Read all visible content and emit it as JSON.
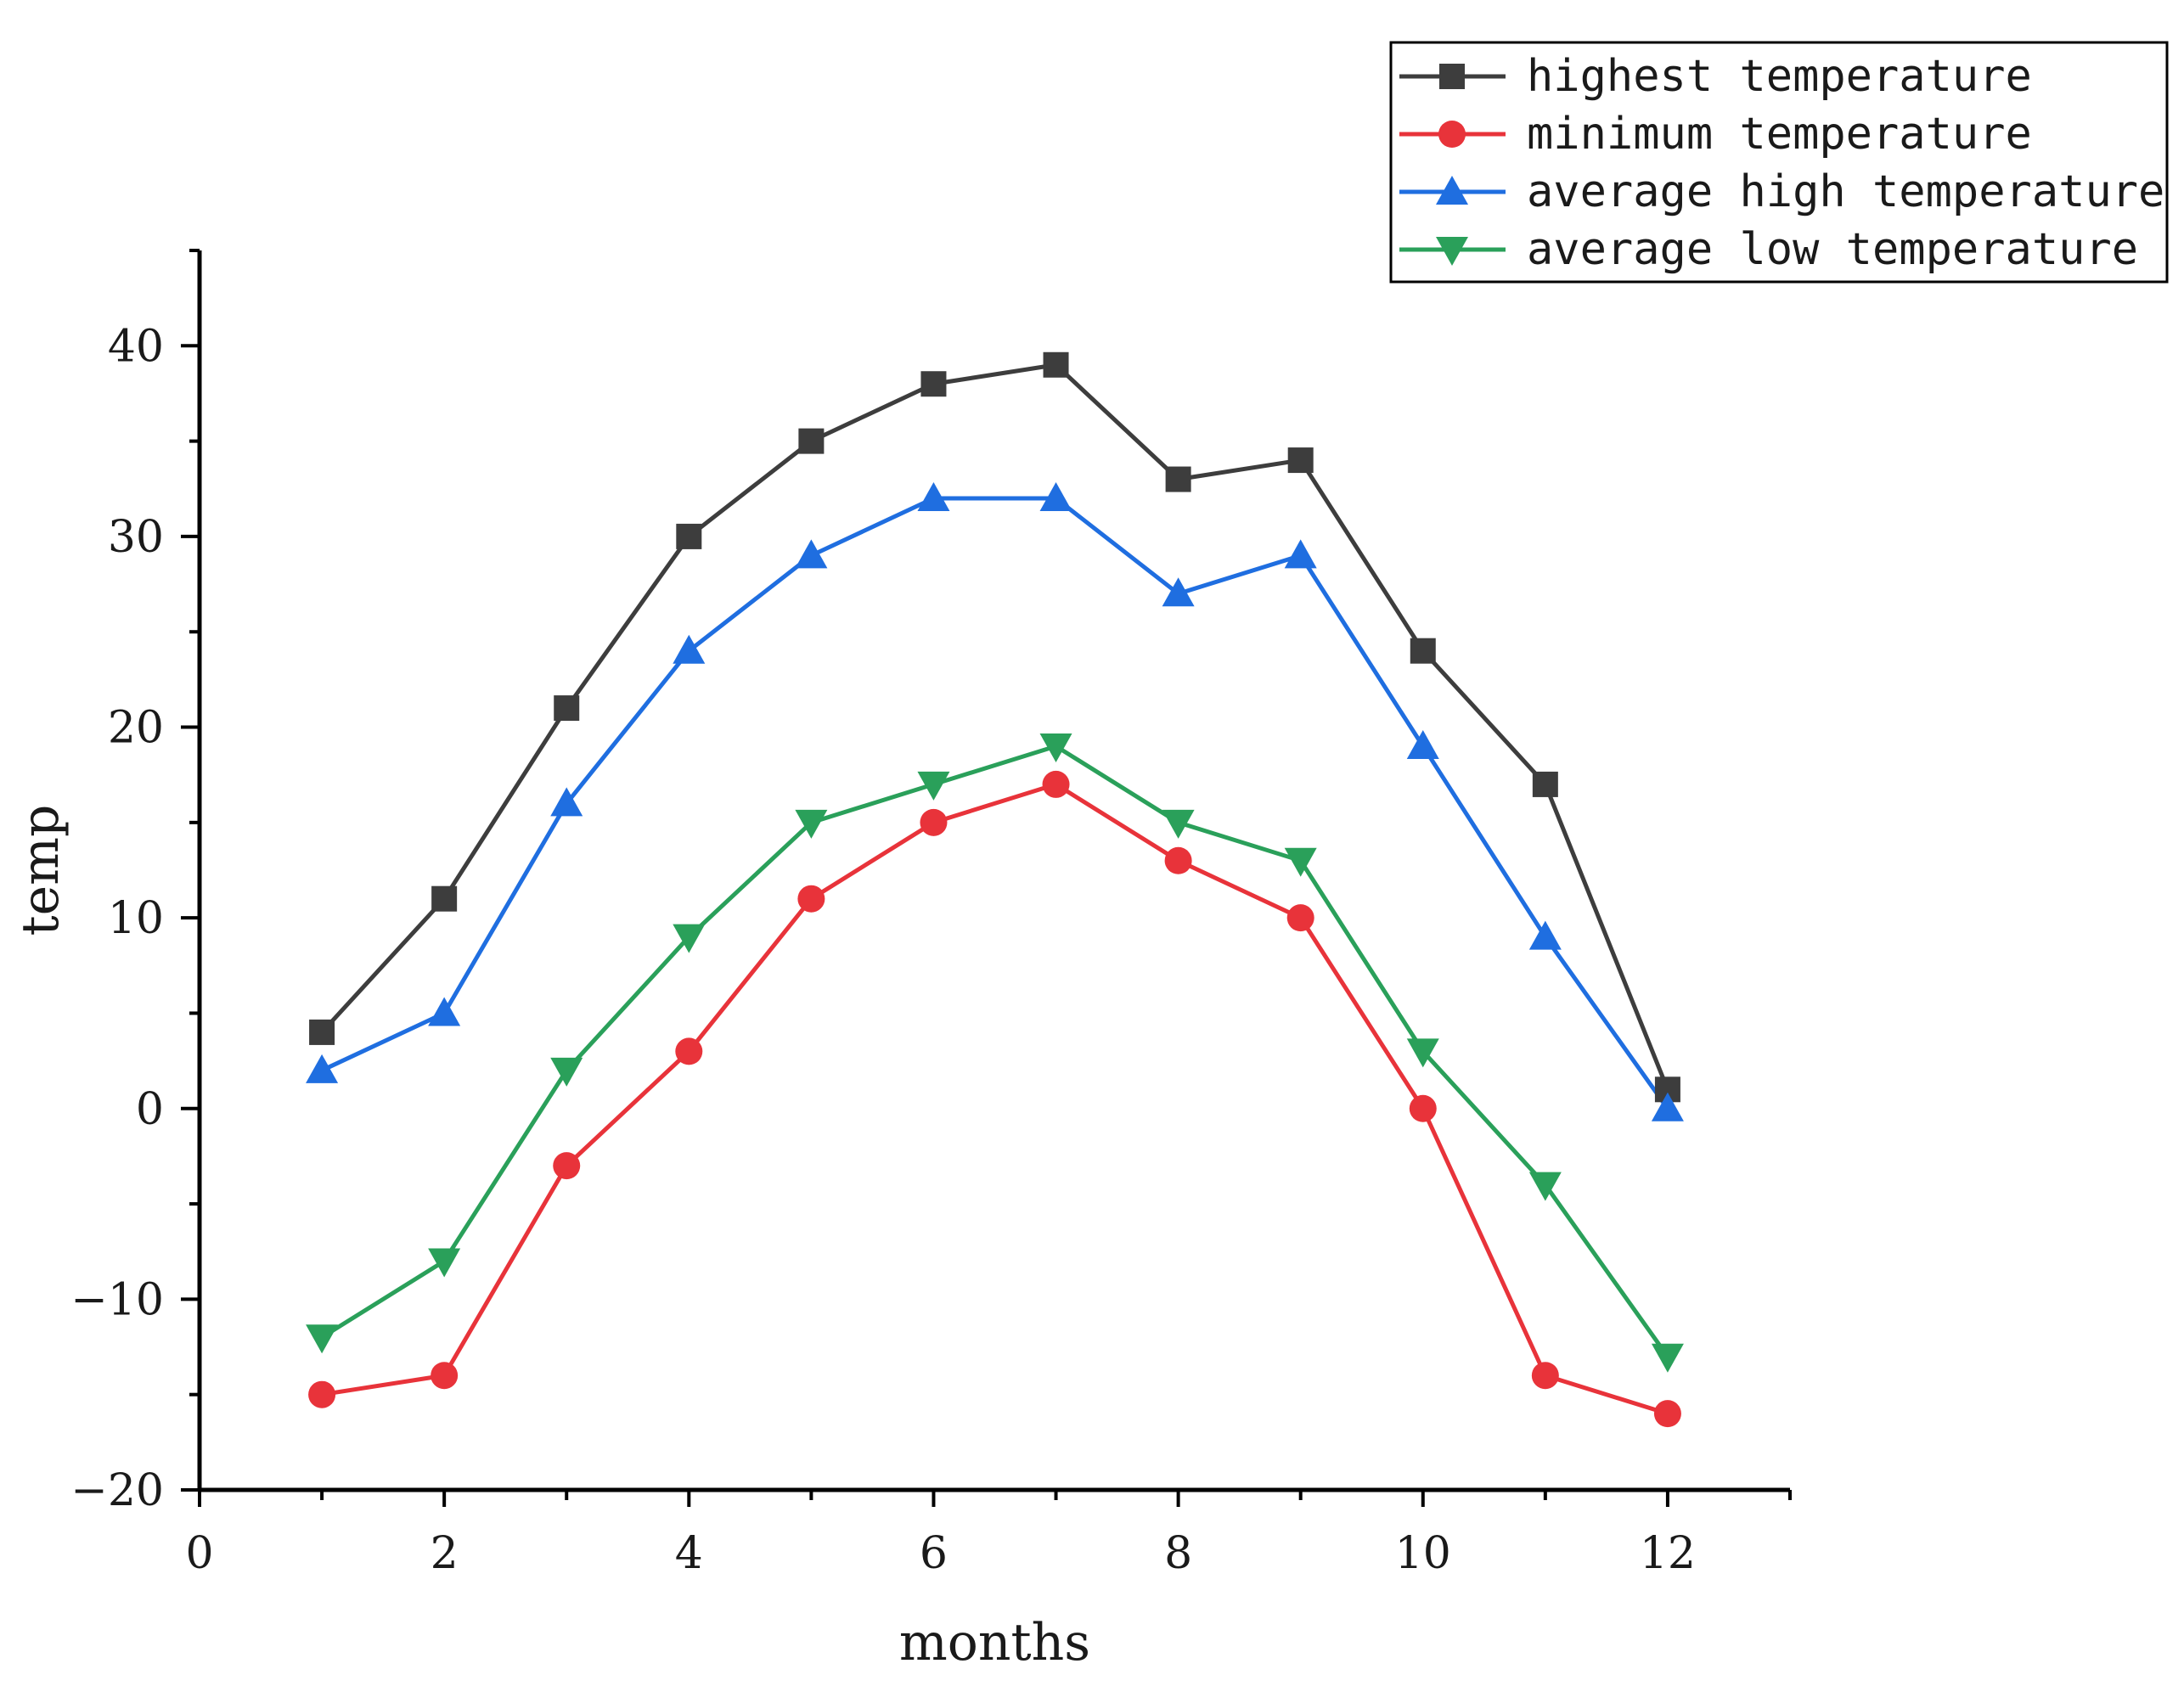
{
  "chart_data": {
    "type": "line",
    "xlabel": "months",
    "ylabel": "temp",
    "xlim": [
      0,
      13
    ],
    "ylim": [
      -20,
      45
    ],
    "xticks": [
      0,
      2,
      4,
      6,
      8,
      10,
      12
    ],
    "xtick_labels": [
      "0",
      "2",
      "4",
      "6",
      "8",
      "10",
      "12"
    ],
    "yticks": [
      -20,
      -10,
      0,
      10,
      20,
      30,
      40
    ],
    "ytick_labels": [
      "−20",
      "−10",
      "0",
      "10",
      "20",
      "30",
      "40"
    ],
    "x": [
      1,
      2,
      3,
      4,
      5,
      6,
      7,
      8,
      9,
      10,
      11,
      12
    ],
    "series": [
      {
        "name": "highest temperature",
        "marker": "square",
        "color": "#3d3d3d",
        "values": [
          4,
          11,
          21,
          30,
          35,
          38,
          39,
          33,
          34,
          24,
          17,
          1
        ]
      },
      {
        "name": "minimum temperature",
        "marker": "circle",
        "color": "#e8333a",
        "values": [
          -15,
          -14,
          -3,
          3,
          11,
          15,
          17,
          13,
          10,
          0,
          -14,
          -16
        ]
      },
      {
        "name": "average high temperature",
        "marker": "triangle-up",
        "color": "#1f6ee0",
        "values": [
          2,
          5,
          16,
          24,
          29,
          32,
          32,
          27,
          29,
          19,
          9,
          0
        ]
      },
      {
        "name": "average low temperature",
        "marker": "triangle-down",
        "color": "#2aa05a",
        "values": [
          -12,
          -8,
          2,
          9,
          15,
          17,
          19,
          15,
          13,
          3,
          -4,
          -13
        ]
      }
    ],
    "legend_position": "top-right",
    "grid": false
  }
}
